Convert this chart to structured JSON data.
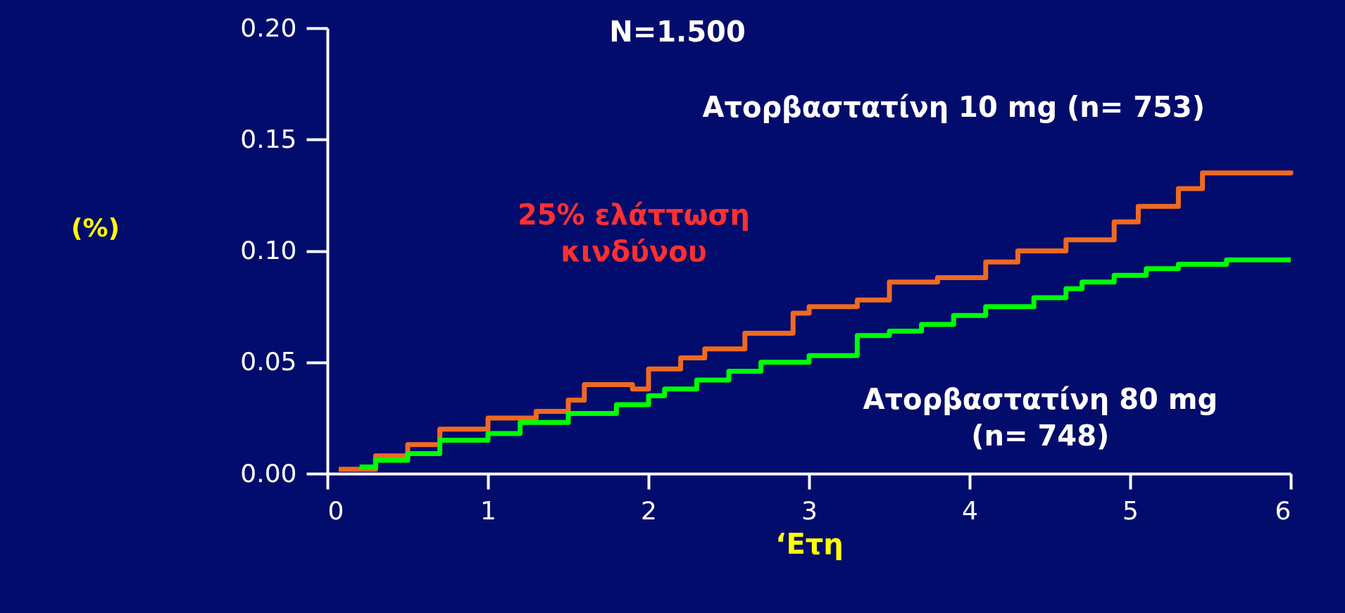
{
  "chart_data": {
    "type": "step",
    "title": "N=1.500",
    "xlabel": "‘Ετη",
    "ylabel": "(%)",
    "annotations": [
      "25% ελάττωση κινδύνου"
    ],
    "xlim": [
      0,
      6
    ],
    "xticks": [
      0,
      1,
      2,
      3,
      4,
      5,
      6
    ],
    "ylim": [
      0,
      0.2
    ],
    "yticks": [
      {
        "value": 0,
        "label": "0.00"
      },
      {
        "value": 0.05,
        "label": "0.05"
      },
      {
        "value": 0.1,
        "label": "0.10"
      },
      {
        "value": 0.15,
        "label": "0.15"
      },
      {
        "value": 0.2,
        "label": "0.20"
      }
    ],
    "grid": false,
    "series": [
      {
        "name": "Ατορβαστατίνη 10 mg (n= 753)",
        "color": "#ee6a22",
        "x": [
          0.07,
          0.3,
          0.5,
          0.7,
          1.0,
          1.3,
          1.5,
          1.6,
          1.9,
          2.0,
          2.2,
          2.35,
          2.6,
          2.9,
          3.0,
          3.3,
          3.5,
          3.8,
          4.1,
          4.3,
          4.6,
          4.9,
          5.05,
          5.3,
          5.45,
          6.0
        ],
        "values": [
          0.002,
          0.008,
          0.013,
          0.02,
          0.025,
          0.028,
          0.033,
          0.04,
          0.038,
          0.047,
          0.052,
          0.056,
          0.063,
          0.072,
          0.075,
          0.078,
          0.086,
          0.088,
          0.095,
          0.1,
          0.105,
          0.113,
          0.12,
          0.128,
          0.135,
          0.136
        ]
      },
      {
        "name": "Ατορβαστατίνη 80 mg (n= 748)",
        "color": "#00ff00",
        "x": [
          0.2,
          0.3,
          0.5,
          0.7,
          1.0,
          1.2,
          1.5,
          1.8,
          2.0,
          2.1,
          2.3,
          2.5,
          2.7,
          3.0,
          3.25,
          3.3,
          3.5,
          3.7,
          3.9,
          4.1,
          4.4,
          4.6,
          4.7,
          4.9,
          5.1,
          5.3,
          5.6,
          6.0
        ],
        "values": [
          0.003,
          0.006,
          0.009,
          0.015,
          0.018,
          0.023,
          0.027,
          0.031,
          0.035,
          0.038,
          0.042,
          0.046,
          0.05,
          0.053,
          0.053,
          0.062,
          0.064,
          0.067,
          0.071,
          0.075,
          0.079,
          0.083,
          0.086,
          0.089,
          0.092,
          0.094,
          0.096,
          0.096
        ]
      }
    ]
  }
}
